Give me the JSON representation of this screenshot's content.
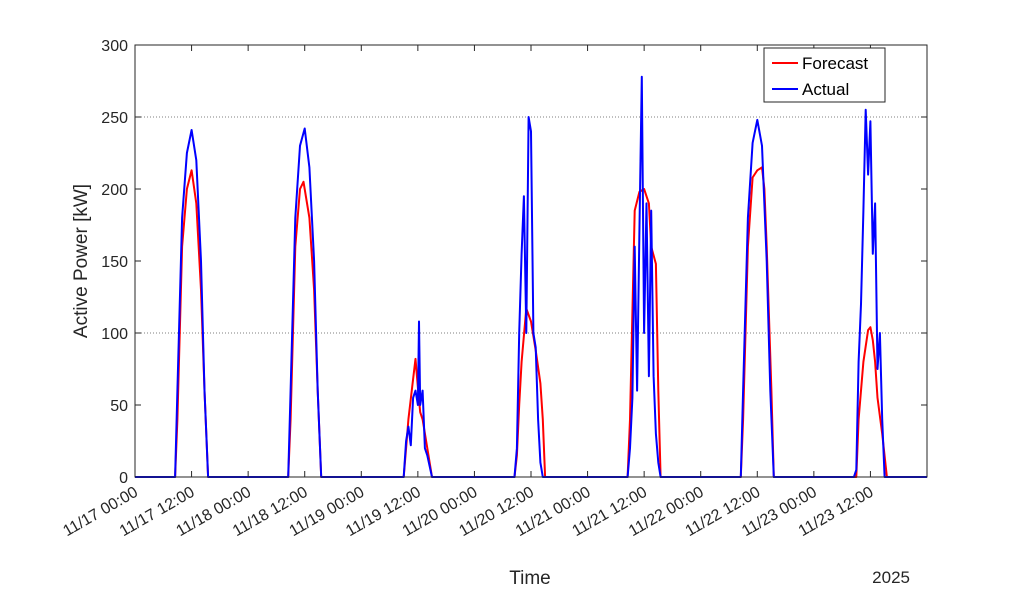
{
  "chart_data": {
    "type": "line",
    "title": "",
    "xlabel": "Time",
    "ylabel": "Active Power [kW]",
    "year_label": "2025",
    "ylim": [
      0,
      300
    ],
    "yticks": [
      0,
      50,
      100,
      150,
      200,
      250,
      300
    ],
    "xlim": [
      "2025-11-17 00:00",
      "2025-11-24 00:00"
    ],
    "xticks": [
      "11/17 00:00",
      "11/17 12:00",
      "11/18 00:00",
      "11/18 12:00",
      "11/19 00:00",
      "11/19 12:00",
      "11/20 00:00",
      "11/20 12:00",
      "11/21 00:00",
      "11/21 12:00",
      "11/22 00:00",
      "11/22 12:00",
      "11/23 00:00",
      "11/23 12:00"
    ],
    "grid_y_at": [
      100,
      250
    ],
    "legend_position": "top-right",
    "series": [
      {
        "name": "Forecast",
        "color": "#ff0000",
        "points": [
          [
            "2025-11-17 00:00",
            0
          ],
          [
            "2025-11-17 08:30",
            0
          ],
          [
            "2025-11-17 09:00",
            40
          ],
          [
            "2025-11-17 10:00",
            160
          ],
          [
            "2025-11-17 11:00",
            200
          ],
          [
            "2025-11-17 12:00",
            213
          ],
          [
            "2025-11-17 13:00",
            190
          ],
          [
            "2025-11-17 14:00",
            130
          ],
          [
            "2025-11-17 14:45",
            60
          ],
          [
            "2025-11-17 15:30",
            0
          ],
          [
            "2025-11-18 08:30",
            0
          ],
          [
            "2025-11-18 09:00",
            40
          ],
          [
            "2025-11-18 10:00",
            160
          ],
          [
            "2025-11-18 11:00",
            200
          ],
          [
            "2025-11-18 11:45",
            205
          ],
          [
            "2025-11-18 13:00",
            180
          ],
          [
            "2025-11-18 14:00",
            130
          ],
          [
            "2025-11-18 14:45",
            60
          ],
          [
            "2025-11-18 15:30",
            0
          ],
          [
            "2025-11-19 09:00",
            0
          ],
          [
            "2025-11-19 09:30",
            20
          ],
          [
            "2025-11-19 10:00",
            40
          ],
          [
            "2025-11-19 11:00",
            68
          ],
          [
            "2025-11-19 11:30",
            82
          ],
          [
            "2025-11-19 12:00",
            62
          ],
          [
            "2025-11-19 12:30",
            45
          ],
          [
            "2025-11-19 13:00",
            40
          ],
          [
            "2025-11-19 14:00",
            20
          ],
          [
            "2025-11-19 15:00",
            0
          ],
          [
            "2025-11-20 08:30",
            0
          ],
          [
            "2025-11-20 09:00",
            15
          ],
          [
            "2025-11-20 09:30",
            50
          ],
          [
            "2025-11-20 10:00",
            80
          ],
          [
            "2025-11-20 11:00",
            117
          ],
          [
            "2025-11-20 12:00",
            108
          ],
          [
            "2025-11-20 13:00",
            88
          ],
          [
            "2025-11-20 14:00",
            65
          ],
          [
            "2025-11-20 14:30",
            40
          ],
          [
            "2025-11-20 15:00",
            0
          ],
          [
            "2025-11-21 08:30",
            0
          ],
          [
            "2025-11-21 09:00",
            40
          ],
          [
            "2025-11-21 10:00",
            185
          ],
          [
            "2025-11-21 11:00",
            198
          ],
          [
            "2025-11-21 12:00",
            200
          ],
          [
            "2025-11-21 13:00",
            190
          ],
          [
            "2025-11-21 13:30",
            160
          ],
          [
            "2025-11-21 14:30",
            148
          ],
          [
            "2025-11-21 15:00",
            60
          ],
          [
            "2025-11-21 15:30",
            0
          ],
          [
            "2025-11-22 08:30",
            0
          ],
          [
            "2025-11-22 09:00",
            40
          ],
          [
            "2025-11-22 10:00",
            160
          ],
          [
            "2025-11-22 11:00",
            208
          ],
          [
            "2025-11-22 12:00",
            213
          ],
          [
            "2025-11-22 13:00",
            215
          ],
          [
            "2025-11-22 13:30",
            200
          ],
          [
            "2025-11-22 14:00",
            160
          ],
          [
            "2025-11-22 15:00",
            60
          ],
          [
            "2025-11-22 15:30",
            0
          ],
          [
            "2025-11-23 09:00",
            0
          ],
          [
            "2025-11-23 09:30",
            40
          ],
          [
            "2025-11-23 10:30",
            80
          ],
          [
            "2025-11-23 11:30",
            102
          ],
          [
            "2025-11-23 12:00",
            104
          ],
          [
            "2025-11-23 12:30",
            95
          ],
          [
            "2025-11-23 13:00",
            80
          ],
          [
            "2025-11-23 13:30",
            55
          ],
          [
            "2025-11-23 14:30",
            30
          ],
          [
            "2025-11-23 15:30",
            0
          ],
          [
            "2025-11-24 00:00",
            0
          ]
        ]
      },
      {
        "name": "Actual",
        "color": "#0000ff",
        "points": [
          [
            "2025-11-17 00:00",
            0
          ],
          [
            "2025-11-17 08:30",
            0
          ],
          [
            "2025-11-17 09:00",
            60
          ],
          [
            "2025-11-17 10:00",
            180
          ],
          [
            "2025-11-17 11:00",
            225
          ],
          [
            "2025-11-17 12:00",
            241
          ],
          [
            "2025-11-17 13:00",
            220
          ],
          [
            "2025-11-17 14:00",
            150
          ],
          [
            "2025-11-17 14:45",
            60
          ],
          [
            "2025-11-17 15:30",
            0
          ],
          [
            "2025-11-18 08:30",
            0
          ],
          [
            "2025-11-18 09:00",
            60
          ],
          [
            "2025-11-18 10:00",
            180
          ],
          [
            "2025-11-18 11:00",
            230
          ],
          [
            "2025-11-18 12:00",
            242
          ],
          [
            "2025-11-18 13:00",
            215
          ],
          [
            "2025-11-18 14:00",
            150
          ],
          [
            "2025-11-18 14:45",
            60
          ],
          [
            "2025-11-18 15:30",
            0
          ],
          [
            "2025-11-19 09:00",
            0
          ],
          [
            "2025-11-19 09:30",
            25
          ],
          [
            "2025-11-19 10:00",
            35
          ],
          [
            "2025-11-19 10:30",
            22
          ],
          [
            "2025-11-19 11:00",
            55
          ],
          [
            "2025-11-19 11:30",
            60
          ],
          [
            "2025-11-19 12:00",
            50
          ],
          [
            "2025-11-19 12:15",
            108
          ],
          [
            "2025-11-19 12:30",
            50
          ],
          [
            "2025-11-19 13:00",
            60
          ],
          [
            "2025-11-19 13:30",
            20
          ],
          [
            "2025-11-19 14:00",
            15
          ],
          [
            "2025-11-19 15:00",
            0
          ],
          [
            "2025-11-20 08:30",
            0
          ],
          [
            "2025-11-20 09:00",
            20
          ],
          [
            "2025-11-20 09:30",
            100
          ],
          [
            "2025-11-20 10:00",
            155
          ],
          [
            "2025-11-20 10:30",
            195
          ],
          [
            "2025-11-20 11:00",
            100
          ],
          [
            "2025-11-20 11:30",
            250
          ],
          [
            "2025-11-20 12:00",
            240
          ],
          [
            "2025-11-20 12:30",
            100
          ],
          [
            "2025-11-20 13:00",
            90
          ],
          [
            "2025-11-20 13:30",
            40
          ],
          [
            "2025-11-20 14:00",
            10
          ],
          [
            "2025-11-20 14:30",
            0
          ],
          [
            "2025-11-21 08:30",
            0
          ],
          [
            "2025-11-21 09:00",
            20
          ],
          [
            "2025-11-21 09:30",
            55
          ],
          [
            "2025-11-21 10:00",
            160
          ],
          [
            "2025-11-21 10:30",
            60
          ],
          [
            "2025-11-21 11:00",
            170
          ],
          [
            "2025-11-21 11:30",
            278
          ],
          [
            "2025-11-21 12:00",
            100
          ],
          [
            "2025-11-21 12:30",
            190
          ],
          [
            "2025-11-21 13:00",
            70
          ],
          [
            "2025-11-21 13:30",
            185
          ],
          [
            "2025-11-21 14:00",
            70
          ],
          [
            "2025-11-21 14:30",
            30
          ],
          [
            "2025-11-21 15:00",
            10
          ],
          [
            "2025-11-21 15:30",
            0
          ],
          [
            "2025-11-22 08:30",
            0
          ],
          [
            "2025-11-22 09:00",
            60
          ],
          [
            "2025-11-22 10:00",
            180
          ],
          [
            "2025-11-22 11:00",
            232
          ],
          [
            "2025-11-22 12:00",
            248
          ],
          [
            "2025-11-22 13:00",
            230
          ],
          [
            "2025-11-22 14:00",
            150
          ],
          [
            "2025-11-22 14:45",
            60
          ],
          [
            "2025-11-22 15:30",
            0
          ],
          [
            "2025-11-23 08:30",
            0
          ],
          [
            "2025-11-23 09:00",
            5
          ],
          [
            "2025-11-23 09:30",
            80
          ],
          [
            "2025-11-23 10:00",
            120
          ],
          [
            "2025-11-23 10:30",
            185
          ],
          [
            "2025-11-23 11:00",
            255
          ],
          [
            "2025-11-23 11:30",
            210
          ],
          [
            "2025-11-23 12:00",
            247
          ],
          [
            "2025-11-23 12:30",
            155
          ],
          [
            "2025-11-23 13:00",
            190
          ],
          [
            "2025-11-23 13:30",
            75
          ],
          [
            "2025-11-23 14:00",
            100
          ],
          [
            "2025-11-23 14:30",
            40
          ],
          [
            "2025-11-23 15:00",
            0
          ],
          [
            "2025-11-24 00:00",
            0
          ]
        ]
      }
    ]
  }
}
